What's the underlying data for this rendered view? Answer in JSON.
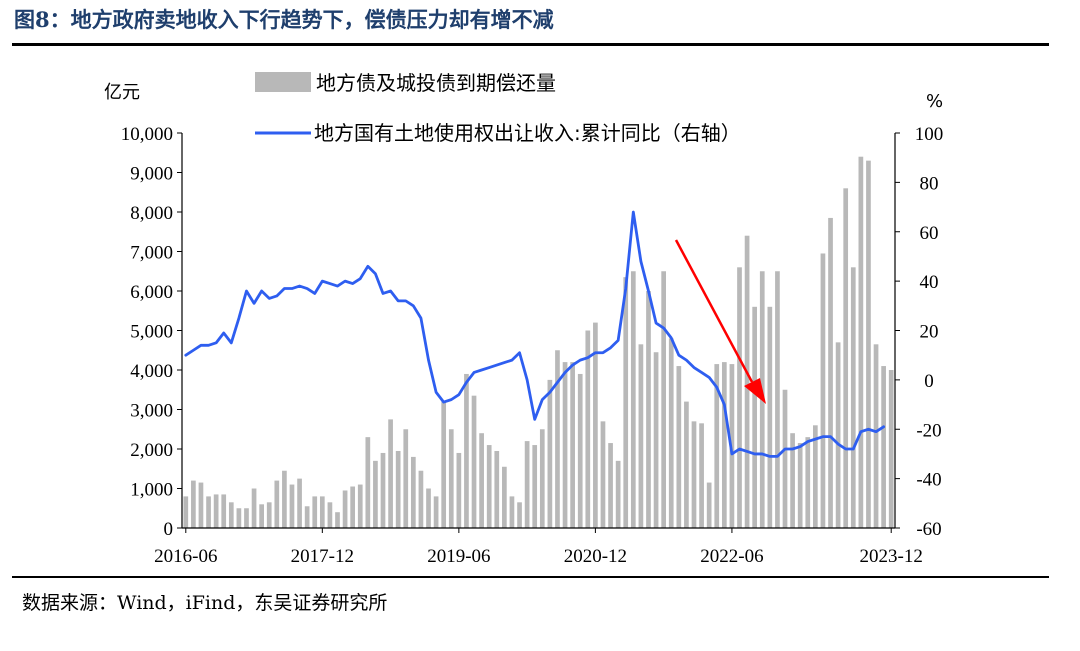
{
  "title": "图8：地方政府卖地收入下行趋势下，偿债压力却有增不减",
  "source": "数据来源：Wind，iFind，东吴证券研究所",
  "chart_data": {
    "type": "bar+line",
    "left_unit": "亿元",
    "right_unit": "%",
    "x_tick_labels": [
      "2016-06",
      "2017-12",
      "2019-06",
      "2020-12",
      "2022-06",
      "2023-12"
    ],
    "y_left": {
      "min": 0,
      "max": 10000,
      "ticks": [
        "0",
        "1,000",
        "2,000",
        "3,000",
        "4,000",
        "5,000",
        "6,000",
        "7,000",
        "8,000",
        "9,000",
        "10,000"
      ]
    },
    "y_right": {
      "min": -60,
      "max": 100,
      "ticks": [
        "-60",
        "-40",
        "-20",
        "0",
        "20",
        "40",
        "60",
        "80",
        "100"
      ]
    },
    "legend_position": "top",
    "annotation": "red arrow indicating downward trend",
    "series": [
      {
        "name": "地方债及城投债到期偿还量",
        "kind": "bar",
        "axis": "left",
        "color": "#b8b8b8",
        "start": "2016-06",
        "values": [
          800,
          1200,
          1150,
          800,
          850,
          850,
          650,
          500,
          500,
          1000,
          600,
          650,
          1200,
          1450,
          1100,
          1250,
          550,
          800,
          800,
          650,
          400,
          950,
          1050,
          1100,
          2300,
          1700,
          1900,
          2750,
          1950,
          2500,
          1800,
          1450,
          1000,
          800,
          3200,
          2500,
          1900,
          3900,
          3350,
          2400,
          2100,
          1950,
          1550,
          800,
          650,
          2200,
          2100,
          2500,
          3750,
          4500,
          4200,
          4200,
          3900,
          5000,
          5200,
          2700,
          2150,
          1700,
          6350,
          6500,
          4650,
          6000,
          4450,
          6500,
          4800,
          4100,
          3200,
          2700,
          2650,
          1150,
          4150,
          4200,
          4150,
          6600,
          7400,
          5600,
          6500,
          5600,
          6500,
          3500,
          2400,
          2150,
          2300,
          2600,
          6950,
          7850,
          4700,
          8600,
          6600,
          9400,
          9300,
          4650,
          4100,
          4000
        ],
        "last_value_for_2023-12": 4000
      },
      {
        "name": "地方国有土地使用权出让收入:累计同比（右轴）",
        "kind": "line",
        "axis": "right",
        "color": "#2e5ef0",
        "start": "2016-06",
        "values": [
          10,
          12,
          14,
          14,
          15,
          19,
          15,
          25,
          36,
          31,
          36,
          33,
          34,
          37,
          37,
          38,
          37,
          35,
          40,
          39,
          38,
          40,
          39,
          41,
          46,
          43,
          35,
          36,
          32,
          32,
          30,
          25,
          8,
          -5,
          -9,
          -8,
          -6,
          -1,
          3,
          4,
          5,
          6,
          7,
          8,
          11,
          0,
          -16,
          -8,
          -5,
          -1,
          3,
          6,
          8,
          9,
          11,
          11,
          13,
          16,
          37,
          68,
          48,
          36,
          23,
          21,
          17,
          10,
          8,
          5,
          3,
          1,
          -3,
          -10,
          -30,
          -28,
          -29,
          -30,
          -30,
          -31,
          -31,
          -28,
          -28,
          -27,
          -25,
          -24,
          -23,
          -23,
          -26,
          -28,
          -28,
          -21,
          -20,
          -21,
          -19
        ]
      }
    ]
  }
}
